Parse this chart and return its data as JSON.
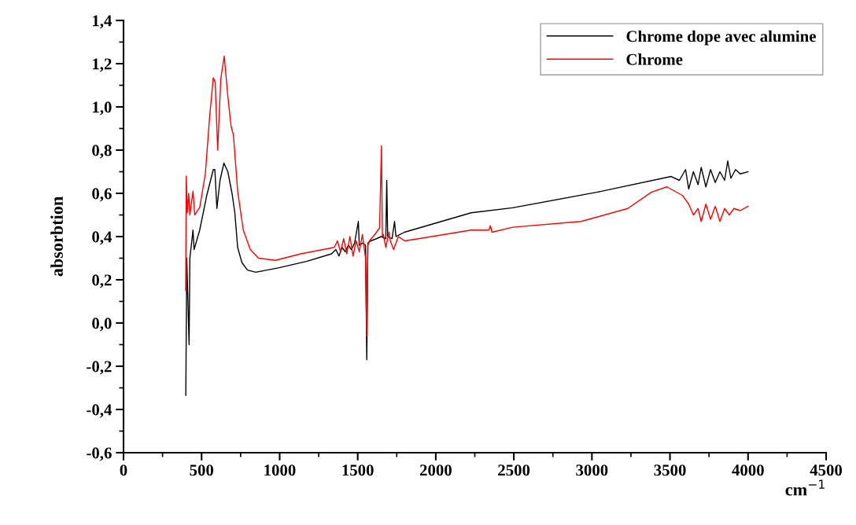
{
  "chart_data": {
    "type": "line",
    "xlabel": "cm$^{−1}$",
    "ylabel": "absorbtion",
    "xlim": [
      0,
      4500
    ],
    "xticks": [
      0,
      500,
      1000,
      1500,
      2000,
      2500,
      3000,
      3500,
      4000,
      4500
    ],
    "ylim": [
      -0.6,
      1.4
    ],
    "yticks": [
      {
        "value": -0.6,
        "label": "-0,6"
      },
      {
        "value": -0.4,
        "label": "-0,4"
      },
      {
        "value": -0.2,
        "label": "-0,2"
      },
      {
        "value": 0.0,
        "label": "0,0"
      },
      {
        "value": 0.2,
        "label": "0,2"
      },
      {
        "value": 0.4,
        "label": "0,4"
      },
      {
        "value": 0.6,
        "label": "0,6"
      },
      {
        "value": 0.8,
        "label": "0,8"
      },
      {
        "value": 1.0,
        "label": "1,0"
      },
      {
        "value": 1.2,
        "label": "1,2"
      },
      {
        "value": 1.4,
        "label": "1,4"
      }
    ],
    "grid": false,
    "legend": "top right",
    "marker": "none",
    "line_style": "solid",
    "series": [
      {
        "name": "Chrome dope avec alumine",
        "color": "#000000",
        "x": [
          399,
          405,
          420,
          425,
          445,
          452,
          488,
          533,
          575,
          585,
          598,
          618,
          643,
          668,
          695,
          713,
          731,
          758,
          794,
          847,
          991,
          1171,
          1332,
          1360,
          1380,
          1400,
          1420,
          1440,
          1460,
          1480,
          1504,
          1510,
          1530,
          1550,
          1558,
          1565,
          1583,
          1620,
          1650,
          1680,
          1686,
          1692,
          1720,
          1736,
          1745,
          1799,
          2226,
          2492,
          3030,
          3508,
          3560,
          3600,
          3620,
          3650,
          3680,
          3700,
          3730,
          3760,
          3790,
          3820,
          3850,
          3870,
          3890,
          3920,
          3950,
          4000
        ],
        "values": [
          -0.335,
          0.3,
          -0.1,
          0.3,
          0.43,
          0.34,
          0.43,
          0.59,
          0.71,
          0.71,
          0.53,
          0.66,
          0.74,
          0.7,
          0.6,
          0.51,
          0.35,
          0.28,
          0.245,
          0.235,
          0.255,
          0.285,
          0.32,
          0.34,
          0.31,
          0.35,
          0.33,
          0.36,
          0.34,
          0.37,
          0.47,
          0.36,
          0.37,
          0.36,
          -0.17,
          0.37,
          0.38,
          0.39,
          0.4,
          0.39,
          0.66,
          0.4,
          0.39,
          0.47,
          0.4,
          0.42,
          0.51,
          0.533,
          0.605,
          0.678,
          0.66,
          0.71,
          0.62,
          0.7,
          0.64,
          0.72,
          0.63,
          0.71,
          0.65,
          0.7,
          0.66,
          0.75,
          0.67,
          0.71,
          0.69,
          0.7
        ]
      },
      {
        "name": "Chrome",
        "color": "#ff0000",
        "x": [
          398,
          402,
          408,
          417,
          425,
          445,
          456,
          488,
          524,
          551,
          575,
          587,
          603,
          623,
          645,
          668,
          689,
          704,
          731,
          767,
          812,
          865,
          973,
          1135,
          1350,
          1370,
          1390,
          1410,
          1430,
          1450,
          1470,
          1490,
          1510,
          1530,
          1550,
          1558,
          1565,
          1575,
          1610,
          1640,
          1652,
          1658,
          1664,
          1680,
          1700,
          1709,
          1730,
          1760,
          1800,
          1889,
          2226,
          2340,
          2350,
          2360,
          2492,
          2930,
          3230,
          3380,
          3480,
          3580,
          3620,
          3650,
          3680,
          3700,
          3730,
          3760,
          3790,
          3820,
          3850,
          3880,
          3910,
          3950,
          4000
        ],
        "values": [
          0.15,
          0.68,
          0.51,
          0.6,
          0.5,
          0.61,
          0.5,
          0.535,
          0.69,
          0.95,
          1.135,
          1.115,
          0.8,
          1.13,
          1.235,
          1.05,
          0.91,
          0.87,
          0.61,
          0.43,
          0.34,
          0.3,
          0.29,
          0.32,
          0.35,
          0.38,
          0.33,
          0.39,
          0.32,
          0.4,
          0.31,
          0.38,
          0.33,
          0.41,
          0.3,
          -0.06,
          0.36,
          0.38,
          0.41,
          0.44,
          0.82,
          0.4,
          0.41,
          0.35,
          0.42,
          0.38,
          0.34,
          0.4,
          0.38,
          0.39,
          0.43,
          0.43,
          0.45,
          0.42,
          0.443,
          0.47,
          0.53,
          0.605,
          0.63,
          0.59,
          0.55,
          0.5,
          0.53,
          0.47,
          0.55,
          0.48,
          0.54,
          0.47,
          0.53,
          0.5,
          0.53,
          0.52,
          0.54
        ]
      }
    ]
  }
}
